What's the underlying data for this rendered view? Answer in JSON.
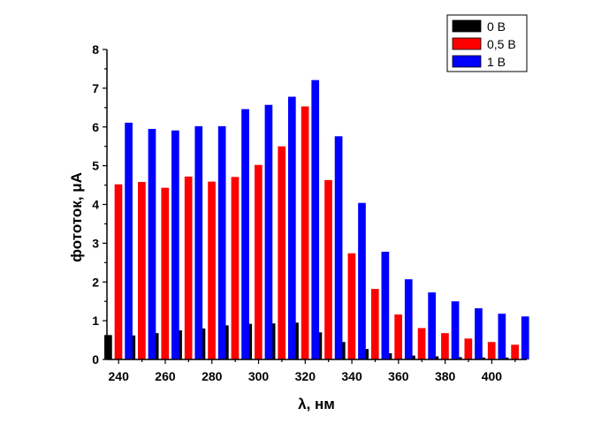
{
  "chart_data": {
    "type": "bar",
    "xlabel": "λ, нм",
    "ylabel": "фототок, μА",
    "x": [
      240,
      250,
      260,
      270,
      280,
      290,
      300,
      310,
      320,
      330,
      340,
      350,
      360,
      370,
      380,
      390,
      400,
      410
    ],
    "xlim": [
      235,
      415
    ],
    "ylim": [
      0,
      8
    ],
    "x_ticks": [
      "240",
      "260",
      "280",
      "300",
      "320",
      "340",
      "360",
      "380",
      "400"
    ],
    "y_ticks": [
      "0",
      "1",
      "2",
      "3",
      "4",
      "5",
      "6",
      "7",
      "8"
    ],
    "grid": false,
    "legend_position": "top-right",
    "series": [
      {
        "name": "0 B",
        "color": "#000000",
        "values": [
          0.63,
          0.62,
          0.68,
          0.75,
          0.8,
          0.88,
          0.92,
          0.93,
          0.95,
          0.7,
          0.45,
          0.27,
          0.16,
          0.1,
          0.08,
          0.06,
          0.05,
          0.05
        ]
      },
      {
        "name": "0,5 B",
        "color": "#ff0000",
        "values": [
          4.52,
          4.58,
          4.43,
          4.72,
          4.59,
          4.71,
          5.02,
          5.5,
          6.53,
          4.63,
          2.74,
          1.82,
          1.16,
          0.81,
          0.68,
          0.54,
          0.45,
          0.38
        ]
      },
      {
        "name": "1 B",
        "color": "#0000ff",
        "values": [
          6.11,
          5.95,
          5.91,
          6.02,
          6.02,
          6.46,
          6.57,
          6.78,
          7.21,
          5.76,
          4.04,
          2.78,
          2.07,
          1.73,
          1.5,
          1.32,
          1.18,
          1.11
        ]
      }
    ]
  }
}
